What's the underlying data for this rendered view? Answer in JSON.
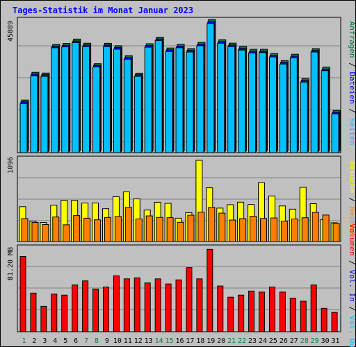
{
  "title": "Tages-Statistik im Monat Januar 2023",
  "colors": {
    "background": "#c0c0c0",
    "panel": "#c0c0c0",
    "grid": "#808080",
    "weekday_label": "#000000",
    "weekend_label": "#008040",
    "title": "#0000ff"
  },
  "chart_data": [
    {
      "type": "bar",
      "panel": "top",
      "ymax_label": "45889",
      "ymax": 45889,
      "categories": [
        "1",
        "2",
        "3",
        "4",
        "5",
        "6",
        "7",
        "8",
        "9",
        "10",
        "11",
        "12",
        "13",
        "14",
        "15",
        "16",
        "17",
        "18",
        "19",
        "20",
        "21",
        "22",
        "23",
        "24",
        "25",
        "26",
        "27",
        "28",
        "29",
        "30",
        "31"
      ],
      "weekend_days": [
        "1",
        "7",
        "8",
        "14",
        "15",
        "21",
        "22",
        "28",
        "29"
      ],
      "legend": [
        {
          "name": "Anfragen",
          "color": "#008040"
        },
        {
          "name": " / ",
          "color": "#000000"
        },
        {
          "name": "Dateien",
          "color": "#0000ff"
        },
        {
          "name": " / ",
          "color": "#000000"
        },
        {
          "name": "Seiten",
          "color": "#00c0ff"
        }
      ],
      "series": [
        {
          "name": "Anfragen",
          "color": "#008040",
          "values": [
            17680,
            27380,
            27130,
            37190,
            37500,
            39010,
            37570,
            30420,
            37540,
            36700,
            33220,
            27100,
            37390,
            39700,
            35890,
            37210,
            35680,
            37870,
            45890,
            38800,
            37600,
            36430,
            35440,
            35460,
            34000,
            31460,
            33720,
            25160,
            35680,
            29200,
            14000
          ]
        },
        {
          "name": "Dateien",
          "color": "#0000ff",
          "values": [
            17400,
            27100,
            26900,
            36900,
            37200,
            38700,
            37300,
            30200,
            37300,
            36400,
            32900,
            26900,
            37100,
            39400,
            35600,
            36900,
            35400,
            37600,
            45500,
            38500,
            37300,
            36100,
            35100,
            35200,
            33700,
            31200,
            33400,
            24900,
            35400,
            28900,
            13800
          ]
        },
        {
          "name": "Seiten",
          "color": "#00c0ff",
          "values": [
            17200,
            26900,
            26700,
            36700,
            37000,
            38500,
            37100,
            30000,
            37100,
            36200,
            32700,
            26700,
            36900,
            39200,
            35400,
            36700,
            35200,
            37400,
            45200,
            38300,
            37100,
            35900,
            34900,
            35000,
            33500,
            31000,
            33200,
            24700,
            35200,
            28700,
            13600
          ]
        }
      ]
    },
    {
      "type": "bar",
      "panel": "middle",
      "ymax_label": "1096",
      "ymax": 1096,
      "legend": [
        {
          "name": "Besuche",
          "color": "#ffff00"
        },
        {
          "name": " / ",
          "color": "#000000"
        },
        {
          "name": "Rechner",
          "color": "#ff8000"
        }
      ],
      "series": [
        {
          "name": "Besuche",
          "color": "#ffff00",
          "values": [
            470,
            273,
            257,
            490,
            555,
            555,
            520,
            520,
            443,
            605,
            670,
            575,
            425,
            530,
            515,
            315,
            390,
            1096,
            725,
            451,
            497,
            531,
            499,
            795,
            615,
            480,
            437,
            731,
            510,
            294,
            253
          ]
        },
        {
          "name": "Rechner",
          "color": "#ff8000",
          "values": [
            309,
            257,
            230,
            331,
            226,
            350,
            315,
            293,
            325,
            337,
            460,
            304,
            346,
            326,
            322,
            260,
            355,
            396,
            461,
            383,
            290,
            309,
            341,
            311,
            318,
            275,
            304,
            321,
            393,
            357,
            246
          ]
        }
      ]
    },
    {
      "type": "bar",
      "panel": "bottom",
      "ymax_label": "81.20 MB",
      "ymax": 81.2,
      "legend": [
        {
          "name": "Volumen",
          "color": "#ff0000"
        },
        {
          "name": " / ",
          "color": "#000000"
        },
        {
          "name": "Vol. In",
          "color": "#0000ff"
        },
        {
          "name": " / ",
          "color": "#000000"
        },
        {
          "name": "Vol. Out",
          "color": "#00c0ff"
        }
      ],
      "series": [
        {
          "name": "Volumen",
          "color": "#ff0000",
          "values": [
            74,
            38,
            25,
            37,
            36,
            46,
            50,
            42,
            44,
            55,
            52,
            53,
            48,
            52,
            47,
            51,
            63,
            52,
            81,
            45,
            34,
            36,
            40,
            39,
            44,
            39,
            33,
            30,
            46,
            23,
            19
          ]
        }
      ]
    }
  ]
}
